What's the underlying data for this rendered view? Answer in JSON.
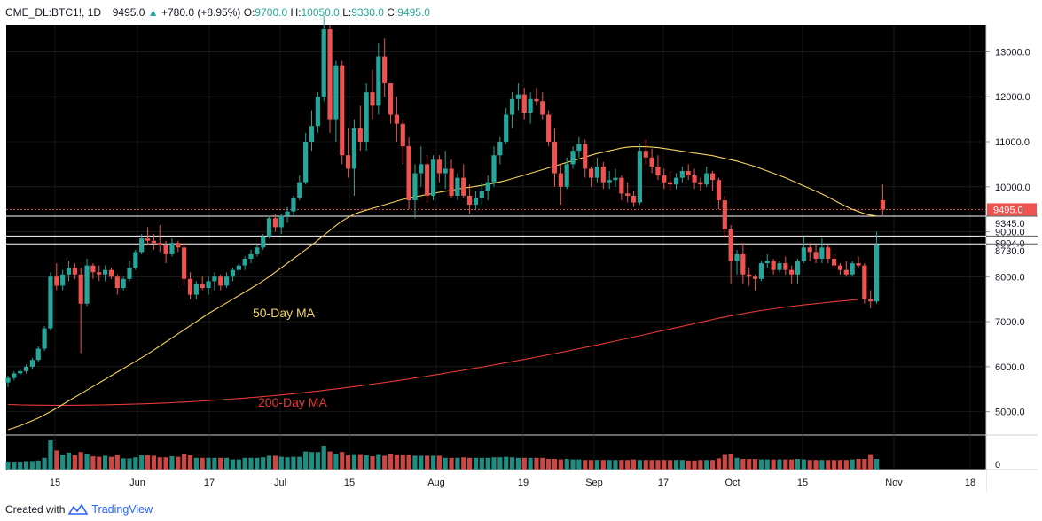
{
  "header": {
    "symbol": "CME_DL:BTC1!, 1D",
    "last": "9495.0",
    "change": "+780.0 (+8.95%)",
    "open_label": "O:",
    "open": "9700.0",
    "high_label": "H:",
    "high": "10050.0",
    "low_label": "L:",
    "low": "9330.0",
    "close_label": "C:",
    "close": "9495.0",
    "arrow": "▲"
  },
  "footer": {
    "created_with": "Created with",
    "brand": "TradingView"
  },
  "colors": {
    "up": "#26a69a",
    "down": "#ef5350",
    "ma50": "#f4d35e",
    "ma200": "#e53935",
    "grid": "#2a2a2a"
  },
  "chart_data": {
    "type": "candlestick",
    "title": "CME_DL:BTC1!, 1D",
    "ylim": [
      4500,
      13600
    ],
    "y_ticks": [
      5000,
      6000,
      7000,
      8000,
      9000,
      10000,
      11000,
      12000,
      13000
    ],
    "y_tick_labels": [
      "5000.0",
      "6000.0",
      "7000.0",
      "8000.0",
      "9000.0",
      "10000.0",
      "11000.0",
      "12000.0",
      "13000.0"
    ],
    "x_ticks": [
      "15",
      "Jun",
      "17",
      "Jul",
      "15",
      "Aug",
      "19",
      "Sep",
      "17",
      "Oct",
      "15",
      "Nov",
      "18"
    ],
    "price_levels": [
      {
        "value": 9495.0,
        "label": "9495.0",
        "style": "dotted-red"
      },
      {
        "value": 9345.0,
        "label": "9345.0",
        "style": "white"
      },
      {
        "value": 8904.0,
        "label": "8904.0",
        "style": "white"
      },
      {
        "value": 8730.0,
        "label": "8730.0",
        "style": "white"
      }
    ],
    "annotations": [
      {
        "text": "50-Day MA",
        "color": "#f4d35e"
      },
      {
        "text": "200-Day MA",
        "color": "#e53935"
      }
    ],
    "volume_axis_label": "0",
    "candles": [
      [
        5650,
        5800,
        5550,
        5750
      ],
      [
        5750,
        5900,
        5700,
        5850
      ],
      [
        5850,
        5950,
        5800,
        5900
      ],
      [
        5900,
        6050,
        5850,
        6000
      ],
      [
        6000,
        6200,
        5950,
        6150
      ],
      [
        6150,
        6450,
        6100,
        6400
      ],
      [
        6400,
        6900,
        6350,
        6850
      ],
      [
        6850,
        8100,
        6800,
        8000
      ],
      [
        8000,
        8300,
        7700,
        7800
      ],
      [
        7800,
        8150,
        7700,
        8050
      ],
      [
        8050,
        8350,
        7900,
        8200
      ],
      [
        8200,
        8300,
        7950,
        8050
      ],
      [
        8050,
        8200,
        6300,
        7400
      ],
      [
        7400,
        8400,
        7350,
        8250
      ],
      [
        8250,
        8300,
        7950,
        8100
      ],
      [
        8100,
        8250,
        7900,
        8050
      ],
      [
        8050,
        8250,
        7900,
        8150
      ],
      [
        8150,
        8200,
        7950,
        8000
      ],
      [
        8000,
        8050,
        7600,
        7750
      ],
      [
        7750,
        8000,
        7700,
        7950
      ],
      [
        7950,
        8350,
        7900,
        8200
      ],
      [
        8200,
        8600,
        8150,
        8550
      ],
      [
        8550,
        8950,
        8500,
        8850
      ],
      [
        8850,
        9100,
        8700,
        8800
      ],
      [
        8800,
        8950,
        8600,
        8750
      ],
      [
        8750,
        9150,
        8550,
        8700
      ],
      [
        8700,
        8800,
        8300,
        8500
      ],
      [
        8500,
        8850,
        8450,
        8750
      ],
      [
        8750,
        8800,
        8550,
        8650
      ],
      [
        8650,
        8750,
        7800,
        7950
      ],
      [
        7950,
        8100,
        7500,
        7600
      ],
      [
        7600,
        7900,
        7500,
        7850
      ],
      [
        7850,
        8000,
        7700,
        7750
      ],
      [
        7750,
        8000,
        7600,
        7900
      ],
      [
        7900,
        8100,
        7700,
        8000
      ],
      [
        8000,
        8050,
        7700,
        7800
      ],
      [
        7800,
        8100,
        7750,
        8000
      ],
      [
        8000,
        8200,
        7900,
        8150
      ],
      [
        8150,
        8300,
        8050,
        8250
      ],
      [
        8250,
        8450,
        8150,
        8400
      ],
      [
        8400,
        8600,
        8300,
        8500
      ],
      [
        8500,
        8700,
        8450,
        8650
      ],
      [
        8650,
        8950,
        8600,
        8900
      ],
      [
        8900,
        9350,
        8850,
        9300
      ],
      [
        9300,
        9400,
        9000,
        9100
      ],
      [
        9100,
        9400,
        8950,
        9350
      ],
      [
        9350,
        9550,
        9200,
        9450
      ],
      [
        9450,
        9800,
        9350,
        9750
      ],
      [
        9750,
        10250,
        9700,
        10100
      ],
      [
        10100,
        11200,
        10050,
        11000
      ],
      [
        11000,
        11700,
        10800,
        11350
      ],
      [
        11350,
        12100,
        11200,
        12000
      ],
      [
        12000,
        13800,
        11900,
        13500
      ],
      [
        13500,
        13600,
        11200,
        11500
      ],
      [
        11500,
        12800,
        11000,
        12700
      ],
      [
        12700,
        12800,
        10500,
        10700
      ],
      [
        10700,
        11300,
        10200,
        10400
      ],
      [
        10400,
        11500,
        9800,
        11300
      ],
      [
        11300,
        11800,
        10800,
        11000
      ],
      [
        11000,
        12300,
        10800,
        12100
      ],
      [
        12100,
        12600,
        11500,
        11800
      ],
      [
        11800,
        13200,
        11600,
        12900
      ],
      [
        12900,
        13300,
        12000,
        12300
      ],
      [
        12300,
        12300,
        11400,
        11600
      ],
      [
        11600,
        12000,
        11000,
        11400
      ],
      [
        11400,
        11500,
        10500,
        10900
      ],
      [
        10900,
        11100,
        9500,
        9700
      ],
      [
        9700,
        10500,
        9300,
        10300
      ],
      [
        10300,
        10900,
        10000,
        10500
      ],
      [
        10500,
        10700,
        9650,
        9800
      ],
      [
        9800,
        10700,
        9700,
        10600
      ],
      [
        10600,
        10700,
        10100,
        10300
      ],
      [
        10300,
        10800,
        9950,
        10400
      ],
      [
        10400,
        10600,
        9750,
        9800
      ],
      [
        9800,
        10300,
        9700,
        10200
      ],
      [
        10200,
        10500,
        9750,
        9800
      ],
      [
        9800,
        10050,
        9400,
        9600
      ],
      [
        9600,
        9900,
        9500,
        9750
      ],
      [
        9750,
        10100,
        9550,
        9900
      ],
      [
        9900,
        10250,
        9700,
        10100
      ],
      [
        10100,
        10900,
        10000,
        10700
      ],
      [
        10700,
        11100,
        10500,
        11000
      ],
      [
        11000,
        11750,
        10950,
        11600
      ],
      [
        11600,
        12100,
        11300,
        11950
      ],
      [
        11950,
        12300,
        11700,
        12050
      ],
      [
        12050,
        12200,
        11500,
        11650
      ],
      [
        11650,
        12100,
        11400,
        11950
      ],
      [
        11950,
        12200,
        11800,
        11900
      ],
      [
        11900,
        12100,
        11500,
        11600
      ],
      [
        11600,
        11700,
        10900,
        11000
      ],
      [
        11000,
        11300,
        10000,
        10300
      ],
      [
        10300,
        10500,
        9600,
        10000
      ],
      [
        10000,
        10650,
        9950,
        10500
      ],
      [
        10500,
        10900,
        10400,
        10800
      ],
      [
        10800,
        11100,
        10650,
        10950
      ],
      [
        10950,
        11050,
        10200,
        10400
      ],
      [
        10400,
        10450,
        10000,
        10200
      ],
      [
        10200,
        10650,
        10100,
        10450
      ],
      [
        10450,
        10550,
        9950,
        10100
      ],
      [
        10100,
        10350,
        9950,
        10150
      ],
      [
        10150,
        10400,
        10000,
        10200
      ],
      [
        10200,
        10250,
        9700,
        9850
      ],
      [
        9850,
        10100,
        9650,
        9800
      ],
      [
        9800,
        9900,
        9550,
        9650
      ],
      [
        9650,
        10950,
        9600,
        10800
      ],
      [
        10800,
        11050,
        10500,
        10650
      ],
      [
        10650,
        10850,
        10300,
        10450
      ],
      [
        10450,
        10700,
        10150,
        10250
      ],
      [
        10250,
        10400,
        9950,
        10100
      ],
      [
        10100,
        10350,
        9900,
        10050
      ],
      [
        10050,
        10300,
        9950,
        10200
      ],
      [
        10200,
        10450,
        10100,
        10350
      ],
      [
        10350,
        10500,
        10150,
        10250
      ],
      [
        10250,
        10400,
        9950,
        10100
      ],
      [
        10100,
        10200,
        9900,
        10050
      ],
      [
        10050,
        10450,
        10000,
        10300
      ],
      [
        10300,
        10350,
        9900,
        10150
      ],
      [
        10150,
        10200,
        9500,
        9700
      ],
      [
        9700,
        9800,
        8850,
        9050
      ],
      [
        9050,
        9150,
        7850,
        8350
      ],
      [
        8350,
        8600,
        8050,
        8500
      ],
      [
        8500,
        8750,
        7850,
        8050
      ],
      [
        8050,
        8200,
        7800,
        8000
      ],
      [
        8000,
        8050,
        7700,
        7950
      ],
      [
        7950,
        8350,
        7900,
        8300
      ],
      [
        8300,
        8500,
        8200,
        8350
      ],
      [
        8350,
        8400,
        8050,
        8150
      ],
      [
        8150,
        8350,
        8100,
        8300
      ],
      [
        8300,
        8450,
        8050,
        8150
      ],
      [
        8150,
        8250,
        7850,
        8050
      ],
      [
        8050,
        8400,
        7850,
        8350
      ],
      [
        8350,
        8900,
        8300,
        8650
      ],
      [
        8650,
        8750,
        8350,
        8550
      ],
      [
        8550,
        8700,
        8300,
        8400
      ],
      [
        8400,
        8850,
        8300,
        8650
      ],
      [
        8650,
        8700,
        8300,
        8400
      ],
      [
        8400,
        8500,
        8200,
        8250
      ],
      [
        8250,
        8300,
        8050,
        8150
      ],
      [
        8150,
        8350,
        8000,
        8050
      ],
      [
        8050,
        8350,
        8000,
        8300
      ],
      [
        8300,
        8450,
        8200,
        8250
      ],
      [
        8250,
        8300,
        7400,
        7500
      ],
      [
        7500,
        7700,
        7300,
        7450
      ],
      [
        7450,
        9000,
        7400,
        8715
      ],
      [
        9700,
        10050,
        9330,
        9495
      ]
    ],
    "series": [
      {
        "name": "50-Day MA",
        "values": [
          4600,
          4640,
          4690,
          4740,
          4800,
          4860,
          4930,
          5000,
          5080,
          5160,
          5240,
          5320,
          5400,
          5480,
          5560,
          5640,
          5720,
          5800,
          5880,
          5960,
          6040,
          6120,
          6200,
          6280,
          6370,
          6460,
          6550,
          6640,
          6730,
          6820,
          6910,
          7000,
          7090,
          7180,
          7260,
          7340,
          7420,
          7500,
          7580,
          7660,
          7740,
          7820,
          7910,
          8000,
          8100,
          8200,
          8300,
          8400,
          8500,
          8600,
          8700,
          8810,
          8920,
          9030,
          9140,
          9240,
          9320,
          9390,
          9440,
          9480,
          9520,
          9560,
          9600,
          9640,
          9680,
          9720,
          9750,
          9780,
          9800,
          9830,
          9850,
          9880,
          9900,
          9920,
          9950,
          9970,
          9990,
          10010,
          10030,
          10050,
          10080,
          10110,
          10140,
          10180,
          10220,
          10260,
          10300,
          10340,
          10380,
          10420,
          10460,
          10500,
          10540,
          10580,
          10620,
          10660,
          10700,
          10740,
          10770,
          10800,
          10830,
          10860,
          10880,
          10890,
          10890,
          10890,
          10880,
          10870,
          10850,
          10830,
          10810,
          10790,
          10770,
          10750,
          10730,
          10710,
          10690,
          10660,
          10630,
          10600,
          10570,
          10530,
          10490,
          10450,
          10400,
          10350,
          10300,
          10250,
          10200,
          10140,
          10080,
          10020,
          9960,
          9900,
          9840,
          9770,
          9700,
          9630,
          9560,
          9500,
          9450,
          9400,
          9370,
          9350
        ]
      },
      {
        "name": "200-Day MA",
        "values": [
          5160,
          5155,
          5150,
          5148,
          5146,
          5145,
          5144,
          5143,
          5143,
          5143,
          5143,
          5144,
          5145,
          5146,
          5148,
          5150,
          5152,
          5155,
          5158,
          5161,
          5165,
          5169,
          5173,
          5178,
          5183,
          5188,
          5194,
          5200,
          5207,
          5214,
          5221,
          5229,
          5237,
          5245,
          5254,
          5263,
          5272,
          5282,
          5292,
          5302,
          5313,
          5324,
          5335,
          5347,
          5359,
          5372,
          5385,
          5399,
          5413,
          5428,
          5443,
          5458,
          5474,
          5490,
          5506,
          5523,
          5540,
          5557,
          5575,
          5593,
          5611,
          5630,
          5649,
          5668,
          5688,
          5708,
          5728,
          5749,
          5770,
          5791,
          5812,
          5834,
          5856,
          5878,
          5900,
          5923,
          5946,
          5969,
          5992,
          6016,
          6040,
          6064,
          6088,
          6113,
          6138,
          6163,
          6188,
          6214,
          6240,
          6266,
          6292,
          6319,
          6346,
          6373,
          6400,
          6428,
          6456,
          6484,
          6512,
          6541,
          6570,
          6599,
          6628,
          6658,
          6688,
          6718,
          6748,
          6778,
          6808,
          6838,
          6868,
          6898,
          6928,
          6958,
          6988,
          7018,
          7048,
          7078,
          7104,
          7130,
          7156,
          7180,
          7204,
          7226,
          7248,
          7268,
          7288,
          7306,
          7324,
          7341,
          7358,
          7373,
          7388,
          7402,
          7416,
          7430,
          7443,
          7456,
          7469,
          7482,
          7495
        ]
      }
    ],
    "volume": [
      1.5,
      1.5,
      1.5,
      1.6,
      1.6,
      1.7,
      2.2,
      5.5,
      3.6,
      2.8,
      3.2,
      2.7,
      3.3,
      3.0,
      2.5,
      2.4,
      2.6,
      2.4,
      2.8,
      2.1,
      2.1,
      2.3,
      2.7,
      2.7,
      2.6,
      2.3,
      2.3,
      2.5,
      2.4,
      3.0,
      2.7,
      2.2,
      2.2,
      2.2,
      2.2,
      2.2,
      2.2,
      1.9,
      1.9,
      2.2,
      2.2,
      2.2,
      2.3,
      2.6,
      2.6,
      2.4,
      2.3,
      2.4,
      2.4,
      3.4,
      3.3,
      3.3,
      4.5,
      3.4,
      3.0,
      3.3,
      2.7,
      2.9,
      2.9,
      2.7,
      2.5,
      2.9,
      2.6,
      3.0,
      2.8,
      2.8,
      2.8,
      2.6,
      2.6,
      2.6,
      2.6,
      2.6,
      2.2,
      2.2,
      2.2,
      2.3,
      2.2,
      2.2,
      2.2,
      2.2,
      2.3,
      2.3,
      2.4,
      2.3,
      2.2,
      2.2,
      2.2,
      2.2,
      2.2,
      2.0,
      2.0,
      1.9,
      2.0,
      1.9,
      1.9,
      1.8,
      1.8,
      1.8,
      1.8,
      1.8,
      1.8,
      1.8,
      1.8,
      1.9,
      1.8,
      1.8,
      1.8,
      1.8,
      1.8,
      1.8,
      1.8,
      1.8,
      1.7,
      1.7,
      1.8,
      1.8,
      1.8,
      2.1,
      2.9,
      3.0,
      2.2,
      2.0,
      2.0,
      2.0,
      1.9,
      1.9,
      1.9,
      1.9,
      1.9,
      1.9,
      2.0,
      1.9,
      1.8,
      1.8,
      1.8,
      1.8,
      1.8,
      1.8,
      1.8,
      1.9,
      2.0,
      2.0,
      2.9,
      2.0
    ]
  }
}
